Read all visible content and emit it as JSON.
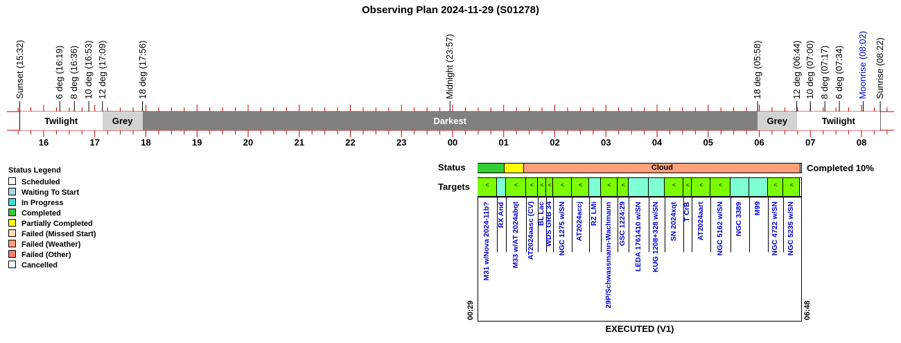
{
  "title": "Observing Plan 2024-11-29 (S01278)",
  "events": [
    {
      "label": "Sunset (15:32)",
      "hour": 15.533,
      "color": "#000000"
    },
    {
      "label": "6 deg (16:19)",
      "hour": 16.317,
      "color": "#000000"
    },
    {
      "label": "8 deg (16:36)",
      "hour": 16.6,
      "color": "#000000"
    },
    {
      "label": "10 deg (16:53)",
      "hour": 16.883,
      "color": "#000000"
    },
    {
      "label": "12 deg (17:09)",
      "hour": 17.15,
      "color": "#000000"
    },
    {
      "label": "18 deg (17:56)",
      "hour": 17.933,
      "color": "#000000"
    },
    {
      "label": "Midnight (23:57)",
      "hour": 23.95,
      "color": "#000000"
    },
    {
      "label": "18 deg (05:58)",
      "hour": 29.967,
      "color": "#000000"
    },
    {
      "label": "12 deg (06:44)",
      "hour": 30.733,
      "color": "#000000"
    },
    {
      "label": "10 deg (07:00)",
      "hour": 31.0,
      "color": "#000000"
    },
    {
      "label": "8 deg (07:17)",
      "hour": 31.283,
      "color": "#000000"
    },
    {
      "label": "6 deg (07:34)",
      "hour": 31.567,
      "color": "#000000"
    },
    {
      "label": "Moonrise (08:02)",
      "hour": 32.033,
      "color": "#0000cc"
    },
    {
      "label": "Sunrise (08:22)",
      "hour": 32.367,
      "color": "#000000"
    }
  ],
  "bands": [
    {
      "label": "Twilight",
      "start": 15.533,
      "end": 17.15,
      "color": "#ffffff"
    },
    {
      "label": "Grey",
      "start": 17.15,
      "end": 17.933,
      "color": "#d3d3d3"
    },
    {
      "label": "Darkest",
      "start": 17.933,
      "end": 29.967,
      "color": "#808080",
      "text_color": "#ffffff"
    },
    {
      "label": "Grey",
      "start": 29.967,
      "end": 30.733,
      "color": "#d3d3d3"
    },
    {
      "label": "Twilight",
      "start": 30.733,
      "end": 32.367,
      "color": "#ffffff"
    }
  ],
  "hours": [
    "16",
    "17",
    "18",
    "19",
    "20",
    "21",
    "22",
    "23",
    "00",
    "01",
    "02",
    "03",
    "04",
    "05",
    "06",
    "07",
    "08"
  ],
  "legend": {
    "title": "Status Legend",
    "items": [
      {
        "label": "Scheduled",
        "color": "#ffffff"
      },
      {
        "label": "Waiting To Start",
        "color": "#add8e6"
      },
      {
        "label": "In Progress",
        "color": "#40e0d0"
      },
      {
        "label": "Completed",
        "color": "#32cd32"
      },
      {
        "label": "Partially Completed",
        "color": "#ffff00"
      },
      {
        "label": "Failed (Missed Start)",
        "color": "#ffdab9"
      },
      {
        "label": "Failed (Weather)",
        "color": "#ffa07a"
      },
      {
        "label": "Failed (Other)",
        "color": "#fa8072"
      },
      {
        "label": "Cancelled",
        "color": "#ffffff"
      }
    ]
  },
  "status": {
    "label": "Status",
    "completed_text": "Completed 10%",
    "segments": [
      {
        "start": 24.483,
        "end": 25.017,
        "color": "#32cd32",
        "text": ""
      },
      {
        "start": 25.017,
        "end": 25.4,
        "color": "#ffff00",
        "text": ""
      },
      {
        "start": 25.4,
        "end": 30.8,
        "color": "#ffa07a",
        "text": "Cloud"
      }
    ]
  },
  "targets_label": "Targets",
  "targets": [
    {
      "name": "M31 w/Nova 2024-11b?",
      "start": 24.483,
      "end": 24.867,
      "color": "#7cfc00",
      "mark": "<"
    },
    {
      "name": "RX And",
      "start": 24.867,
      "end": 25.05,
      "color": "#7fffd4",
      "mark": ""
    },
    {
      "name": "M33 w/AT 2024abqt",
      "start": 25.05,
      "end": 25.433,
      "color": "#7cfc00",
      "mark": "<"
    },
    {
      "name": "AT2024aasc (CV)",
      "start": 25.433,
      "end": 25.667,
      "color": "#7cfc00",
      "mark": "<"
    },
    {
      "name": "BL Lac",
      "start": 25.667,
      "end": 25.833,
      "color": "#7cfc00",
      "mark": "<"
    },
    {
      "name": "WDS GRB 34",
      "start": 25.833,
      "end": 25.967,
      "color": "#7cfc00",
      "mark": "<"
    },
    {
      "name": "NGC 1275 w/SN",
      "start": 25.967,
      "end": 26.333,
      "color": "#7cfc00",
      "mark": "<"
    },
    {
      "name": "AT2024accj",
      "start": 26.333,
      "end": 26.667,
      "color": "#7cfc00",
      "mark": "<"
    },
    {
      "name": "RZ LMi",
      "start": 26.667,
      "end": 26.9,
      "color": "#7fffd4",
      "mark": ""
    },
    {
      "name": "29P/Schwassmann-Wachmann",
      "start": 26.9,
      "end": 27.233,
      "color": "#7cfc00",
      "mark": "<"
    },
    {
      "name": "GSC 1224:29",
      "start": 27.233,
      "end": 27.45,
      "color": "#7cfc00",
      "mark": "<"
    },
    {
      "name": "LEDA 1761410 w/SN",
      "start": 27.45,
      "end": 27.833,
      "color": "#7fffd4",
      "mark": ""
    },
    {
      "name": "KUG 1208+328 w/SN",
      "start": 27.833,
      "end": 28.15,
      "color": "#7fffd4",
      "mark": ""
    },
    {
      "name": "SN 2024xqt",
      "start": 28.15,
      "end": 28.517,
      "color": "#7cfc00",
      "mark": "<"
    },
    {
      "name": "T CrB",
      "start": 28.517,
      "end": 28.683,
      "color": "#7cfc00",
      "mark": "<"
    },
    {
      "name": "AT2024aart",
      "start": 28.683,
      "end": 29.05,
      "color": "#7cfc00",
      "mark": "<"
    },
    {
      "name": "NGC 5162 w/SN",
      "start": 29.05,
      "end": 29.433,
      "color": "#7cfc00",
      "mark": "<"
    },
    {
      "name": "NGC 3389",
      "start": 29.433,
      "end": 29.8,
      "color": "#7fffd4",
      "mark": ""
    },
    {
      "name": "M99",
      "start": 29.8,
      "end": 30.167,
      "color": "#7fffd4",
      "mark": ""
    },
    {
      "name": "NGC 4722 w/SN",
      "start": 30.167,
      "end": 30.467,
      "color": "#7cfc00",
      "mark": "<"
    },
    {
      "name": "NGC 5235 w/SN",
      "start": 30.467,
      "end": 30.8,
      "color": "#7cfc00",
      "mark": "<"
    }
  ],
  "start_time": "00:29",
  "end_time": "06:48",
  "footer": "EXECUTED (V1)"
}
